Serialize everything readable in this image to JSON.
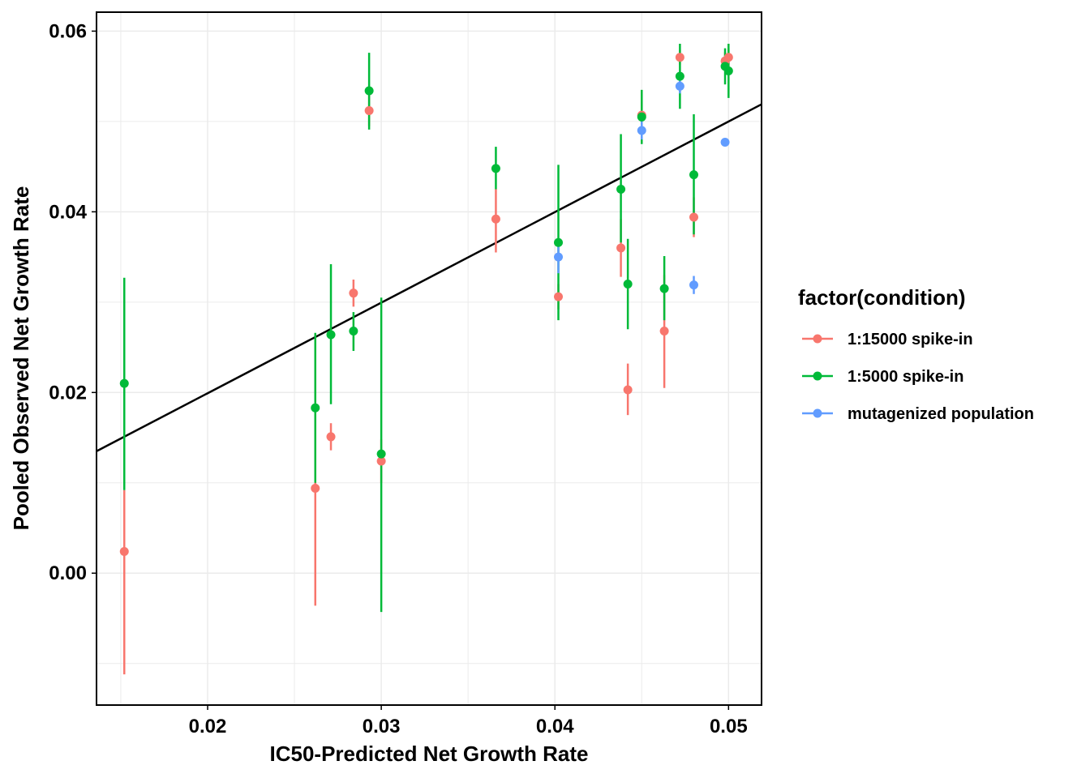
{
  "chart_data": {
    "type": "scatter",
    "title": "",
    "xlabel": "IC50-Predicted Net Growth Rate",
    "ylabel": "Pooled Observed Net Growth Rate",
    "xlim": [
      0.0136,
      0.0519
    ],
    "ylim": [
      -0.0146,
      0.0621
    ],
    "x_ticks": [
      {
        "value": 0.02,
        "label": "0.02"
      },
      {
        "value": 0.03,
        "label": "0.03"
      },
      {
        "value": 0.04,
        "label": "0.04"
      },
      {
        "value": 0.05,
        "label": "0.05"
      }
    ],
    "y_ticks": [
      {
        "value": 0.0,
        "label": "0.00"
      },
      {
        "value": 0.02,
        "label": "0.02"
      },
      {
        "value": 0.04,
        "label": "0.04"
      },
      {
        "value": 0.06,
        "label": "0.06"
      }
    ],
    "x_minor": [
      0.015,
      0.025,
      0.035,
      0.045
    ],
    "y_minor": [
      -0.01,
      0.01,
      0.03,
      0.05
    ],
    "grid": true,
    "legend": {
      "title": "factor(condition)",
      "position": "right",
      "entries": [
        "1:15000 spike-in",
        "1:5000 spike-in",
        "mutagenized population"
      ]
    },
    "fit_line": {
      "x": [
        0.0136,
        0.0519
      ],
      "y": [
        0.0135,
        0.0519
      ],
      "color": "#000000"
    },
    "series": [
      {
        "name": "1:15000 spike-in",
        "color": "#F8766D",
        "points": [
          {
            "x": 0.0152,
            "y": 0.0024,
            "ymin": -0.0112,
            "ymax": 0.0092
          },
          {
            "x": 0.0262,
            "y": 0.0094,
            "ymin": -0.0036,
            "ymax": 0.0225
          },
          {
            "x": 0.0271,
            "y": 0.0151,
            "ymin": 0.0136,
            "ymax": 0.0166
          },
          {
            "x": 0.0284,
            "y": 0.031,
            "ymin": 0.0295,
            "ymax": 0.0325
          },
          {
            "x": 0.0293,
            "y": 0.0512,
            "ymin": 0.0495,
            "ymax": 0.053
          },
          {
            "x": 0.03,
            "y": 0.0124,
            "ymin": 0.01,
            "ymax": 0.0148
          },
          {
            "x": 0.0366,
            "y": 0.0392,
            "ymin": 0.0355,
            "ymax": 0.0425
          },
          {
            "x": 0.0402,
            "y": 0.0306,
            "ymin": 0.0292,
            "ymax": 0.032
          },
          {
            "x": 0.0438,
            "y": 0.036,
            "ymin": 0.0328,
            "ymax": 0.0392
          },
          {
            "x": 0.0442,
            "y": 0.0203,
            "ymin": 0.0175,
            "ymax": 0.0232
          },
          {
            "x": 0.045,
            "y": 0.0507,
            "ymin": 0.0492,
            "ymax": 0.0522
          },
          {
            "x": 0.0463,
            "y": 0.0268,
            "ymin": 0.0205,
            "ymax": 0.033
          },
          {
            "x": 0.0472,
            "y": 0.0571,
            "ymin": 0.0563,
            "ymax": 0.0579
          },
          {
            "x": 0.048,
            "y": 0.0394,
            "ymin": 0.0372,
            "ymax": 0.0416
          },
          {
            "x": 0.0498,
            "y": 0.0567,
            "ymin": 0.0557,
            "ymax": 0.0577
          },
          {
            "x": 0.05,
            "y": 0.0571,
            "ymin": 0.0561,
            "ymax": 0.0581
          }
        ]
      },
      {
        "name": "1:5000 spike-in",
        "color": "#00BA38",
        "points": [
          {
            "x": 0.0152,
            "y": 0.021,
            "ymin": 0.0092,
            "ymax": 0.0327
          },
          {
            "x": 0.0262,
            "y": 0.0183,
            "ymin": 0.01,
            "ymax": 0.0266
          },
          {
            "x": 0.0271,
            "y": 0.0264,
            "ymin": 0.0187,
            "ymax": 0.0342
          },
          {
            "x": 0.0284,
            "y": 0.0268,
            "ymin": 0.0246,
            "ymax": 0.0289
          },
          {
            "x": 0.0293,
            "y": 0.0534,
            "ymin": 0.0491,
            "ymax": 0.0576
          },
          {
            "x": 0.03,
            "y": 0.0132,
            "ymin": -0.0043,
            "ymax": 0.0305
          },
          {
            "x": 0.0366,
            "y": 0.0448,
            "ymin": 0.0425,
            "ymax": 0.0472
          },
          {
            "x": 0.0402,
            "y": 0.0366,
            "ymin": 0.028,
            "ymax": 0.0452
          },
          {
            "x": 0.0438,
            "y": 0.0425,
            "ymin": 0.0366,
            "ymax": 0.0486
          },
          {
            "x": 0.0442,
            "y": 0.032,
            "ymin": 0.027,
            "ymax": 0.037
          },
          {
            "x": 0.045,
            "y": 0.0505,
            "ymin": 0.0475,
            "ymax": 0.0535
          },
          {
            "x": 0.0463,
            "y": 0.0315,
            "ymin": 0.028,
            "ymax": 0.0351
          },
          {
            "x": 0.0472,
            "y": 0.055,
            "ymin": 0.0514,
            "ymax": 0.0586
          },
          {
            "x": 0.048,
            "y": 0.0441,
            "ymin": 0.0375,
            "ymax": 0.0508
          },
          {
            "x": 0.0498,
            "y": 0.0561,
            "ymin": 0.0541,
            "ymax": 0.0581
          },
          {
            "x": 0.05,
            "y": 0.0556,
            "ymin": 0.0526,
            "ymax": 0.0586
          }
        ]
      },
      {
        "name": "mutagenized population",
        "color": "#619CFF",
        "points": [
          {
            "x": 0.0402,
            "y": 0.035,
            "ymin": 0.0332,
            "ymax": 0.0365
          },
          {
            "x": 0.045,
            "y": 0.049,
            "ymin": 0.048,
            "ymax": 0.05
          },
          {
            "x": 0.0472,
            "y": 0.0539,
            "ymin": 0.0531,
            "ymax": 0.0546
          },
          {
            "x": 0.048,
            "y": 0.0319,
            "ymin": 0.0309,
            "ymax": 0.0329
          },
          {
            "x": 0.0498,
            "y": 0.0477,
            "ymin": 0.0474,
            "ymax": 0.048
          }
        ]
      }
    ]
  }
}
